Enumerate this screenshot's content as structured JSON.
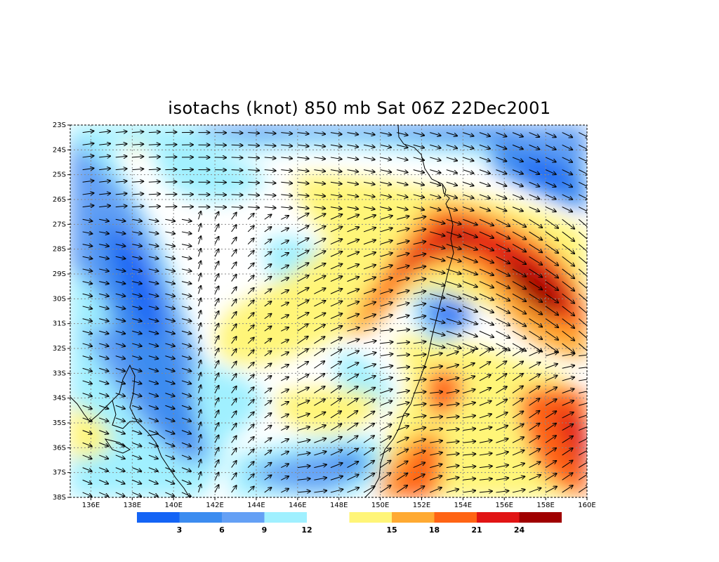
{
  "title": "isotachs (knot) 850 mb Sat 06Z 22Dec2001",
  "map": {
    "lon_range": [
      135,
      160
    ],
    "lat_range": [
      -38,
      -23
    ],
    "lon_ticks": [
      "136E",
      "138E",
      "140E",
      "142E",
      "144E",
      "146E",
      "148E",
      "150E",
      "152E",
      "154E",
      "156E",
      "158E",
      "160E"
    ],
    "lat_ticks": [
      "23S",
      "24S",
      "25S",
      "26S",
      "27S",
      "28S",
      "29S",
      "30S",
      "31S",
      "32S",
      "33S",
      "34S",
      "35S",
      "36S",
      "37S",
      "38S"
    ],
    "grid": "dotted",
    "wind_vectors": true,
    "coastline": true
  },
  "colorbar": {
    "labels": [
      "3",
      "6",
      "9",
      "12",
      "15",
      "18",
      "21",
      "24"
    ],
    "colors": [
      "#1464f5",
      "#3c8cf0",
      "#64a0f5",
      "#a0f0ff",
      "#ffffff",
      "#fff578",
      "#ffaa32",
      "#ff6414",
      "#e11414",
      "#a00000"
    ]
  }
}
